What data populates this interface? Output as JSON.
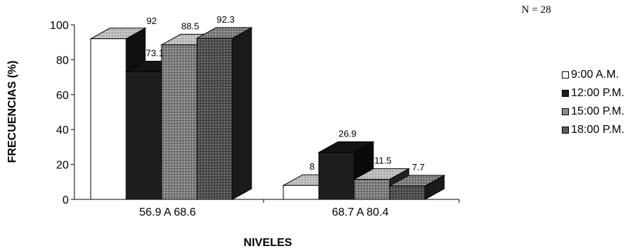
{
  "sample_note": "N = 28",
  "colors": {
    "s0": "#ffffff",
    "s1": "#1e1e1e",
    "s2": "#8a8a8a",
    "s3": "#5a5a5a",
    "s0_top": "#c8c8c8",
    "s1_top": "#141414",
    "s2_top": "#9a9a9a",
    "s3_top": "#6a6a6a"
  },
  "chart_data": {
    "type": "bar",
    "title": "",
    "xlabel": "NIVELES",
    "ylabel": "FRECUENCIAS (%)",
    "ylim": [
      0,
      100
    ],
    "yticks": [
      "0",
      "20",
      "40",
      "60",
      "80",
      "100"
    ],
    "categories": [
      "56.9 A 68.6",
      "68.7 A 80.4"
    ],
    "series": [
      {
        "name": "9:00 A.M.",
        "values": [
          92,
          8
        ],
        "labels": [
          "",
          "8"
        ]
      },
      {
        "name": "12:00 P.M.",
        "values": [
          73.1,
          26.9
        ],
        "labels": [
          "73.1",
          "26.9"
        ]
      },
      {
        "name": "15:00 P.M.",
        "values": [
          88.5,
          11.5
        ],
        "labels": [
          "88.5",
          "11.5"
        ]
      },
      {
        "name": "18:00 P.M.",
        "values": [
          92.3,
          7.7
        ],
        "labels": [
          "92.3",
          "7.7"
        ]
      }
    ],
    "extra_labels": [
      {
        "text": "92",
        "series": 0,
        "category": 0
      }
    ],
    "grid": false,
    "style": "3d-column",
    "legend_position": "right"
  }
}
